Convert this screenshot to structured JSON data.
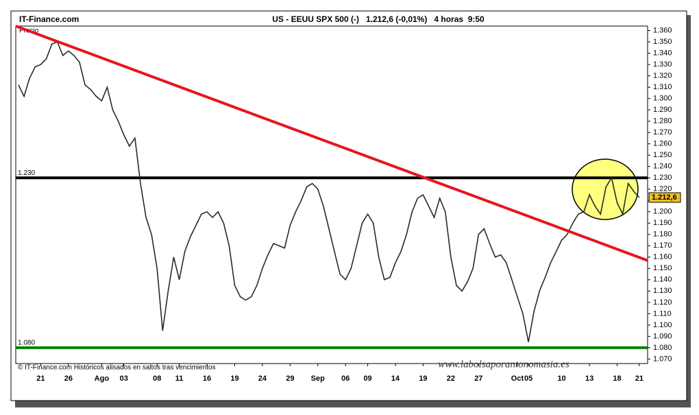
{
  "chart_data": {
    "type": "line",
    "site": "IT-Finance.com",
    "title": "US - EEUU SPX 500 (-)   1.212,6 (-0,01%)   4 horas  9:50",
    "y_label": "Precio",
    "footer": "© IT-Finance.com  Históricos alisados en saltos tras vencimientos",
    "watermark": "www.labolsaporantonomasia.es",
    "last_price": {
      "value": 1212.6,
      "label": "1.212,6"
    },
    "categories": [
      null,
      null,
      null,
      null,
      "21",
      null,
      null,
      null,
      null,
      "26",
      null,
      null,
      null,
      null,
      null,
      "Ago",
      null,
      null,
      null,
      "03",
      null,
      null,
      null,
      null,
      null,
      "08",
      null,
      null,
      null,
      "11",
      null,
      null,
      null,
      null,
      "16",
      null,
      null,
      null,
      null,
      "19",
      null,
      null,
      null,
      null,
      "24",
      null,
      null,
      null,
      null,
      "29",
      null,
      null,
      null,
      null,
      "Sep",
      null,
      null,
      null,
      null,
      "06",
      null,
      null,
      null,
      "09",
      null,
      null,
      null,
      null,
      "14",
      null,
      null,
      null,
      null,
      "19",
      null,
      null,
      null,
      null,
      "22",
      null,
      null,
      null,
      null,
      "27",
      null,
      null,
      null,
      null,
      null,
      null,
      "Oct",
      null,
      "05",
      null,
      null,
      null,
      null,
      null,
      "10",
      null,
      null,
      null,
      null,
      "13",
      null,
      null,
      null,
      null,
      "18",
      null,
      null,
      null,
      "21",
      null
    ],
    "series": [
      {
        "name": "SPX 500",
        "color": "#1f2f1f",
        "values": [
          1312,
          1302,
          1318,
          1328,
          1330,
          1335,
          1348,
          1350,
          1338,
          1342,
          1338,
          1332,
          1312,
          1308,
          1302,
          1298,
          1310,
          1290,
          1280,
          1268,
          1258,
          1265,
          1225,
          1195,
          1180,
          1150,
          1095,
          1130,
          1160,
          1140,
          1165,
          1178,
          1188,
          1198,
          1200,
          1195,
          1200,
          1190,
          1170,
          1135,
          1125,
          1122,
          1125,
          1135,
          1150,
          1162,
          1172,
          1170,
          1168,
          1188,
          1200,
          1210,
          1222,
          1225,
          1220,
          1205,
          1185,
          1165,
          1145,
          1140,
          1150,
          1170,
          1190,
          1198,
          1190,
          1160,
          1140,
          1142,
          1155,
          1165,
          1180,
          1200,
          1212,
          1215,
          1205,
          1195,
          1212,
          1200,
          1160,
          1135,
          1130,
          1138,
          1150,
          1180,
          1185,
          1172,
          1160,
          1162,
          1155,
          1140,
          1125,
          1110,
          1085,
          1112,
          1130,
          1142,
          1155,
          1165,
          1175,
          1180,
          1190,
          1198,
          1200,
          1215,
          1205,
          1198,
          1222,
          1230,
          1208,
          1198,
          1225,
          1218,
          1212.6,
          null
        ]
      }
    ],
    "trendline": {
      "start": 1364,
      "end": 1157,
      "color": "#e8141e"
    },
    "levels": [
      {
        "value": 1230,
        "label": "1.230",
        "color": "#000000"
      },
      {
        "value": 1080,
        "label": "1.080",
        "color": "#008000"
      }
    ],
    "ylim": [
      1066,
      1364
    ],
    "yticks": [
      {
        "value": 1070,
        "label": "1.070"
      },
      {
        "value": 1080,
        "label": "1.080"
      },
      {
        "value": 1090,
        "label": "1.090"
      },
      {
        "value": 1100,
        "label": "1.100"
      },
      {
        "value": 1110,
        "label": "1.110"
      },
      {
        "value": 1120,
        "label": "1.120"
      },
      {
        "value": 1130,
        "label": "1.130"
      },
      {
        "value": 1140,
        "label": "1.140"
      },
      {
        "value": 1150,
        "label": "1.150"
      },
      {
        "value": 1160,
        "label": "1.160"
      },
      {
        "value": 1170,
        "label": "1.170"
      },
      {
        "value": 1180,
        "label": "1.180"
      },
      {
        "value": 1190,
        "label": "1.190"
      },
      {
        "value": 1200,
        "label": "1.200"
      },
      {
        "value": 1210,
        "label": "1.210"
      },
      {
        "value": 1220,
        "label": "1.220"
      },
      {
        "value": 1230,
        "label": "1.230"
      },
      {
        "value": 1240,
        "label": "1.240"
      },
      {
        "value": 1250,
        "label": "1.250"
      },
      {
        "value": 1260,
        "label": "1.260"
      },
      {
        "value": 1270,
        "label": "1.270"
      },
      {
        "value": 1280,
        "label": "1.280"
      },
      {
        "value": 1290,
        "label": "1.290"
      },
      {
        "value": 1300,
        "label": "1.300"
      },
      {
        "value": 1310,
        "label": "1.310"
      },
      {
        "value": 1320,
        "label": "1.320"
      },
      {
        "value": 1330,
        "label": "1.330"
      },
      {
        "value": 1340,
        "label": "1.340"
      },
      {
        "value": 1350,
        "label": "1.350"
      },
      {
        "value": 1360,
        "label": "1.360"
      }
    ]
  }
}
